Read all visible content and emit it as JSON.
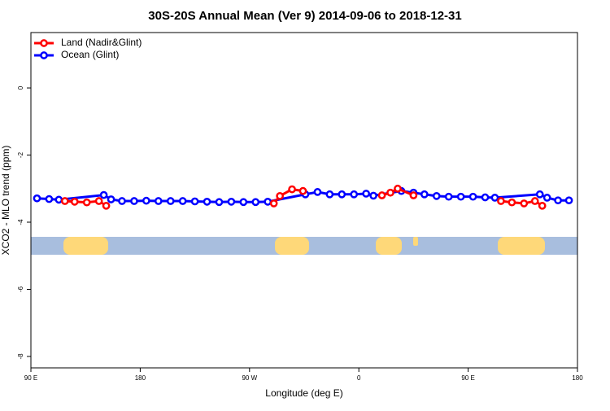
{
  "chart_data": {
    "type": "line",
    "title": "30S-20S Annual Mean (Ver 9)   2014-09-06 to 2018-12-31",
    "x_label": "Longitude (deg E)",
    "y_label": "XCO2 - MLO trend (ppm)",
    "xlim": [
      90,
      540
    ],
    "ylim": [
      -8.34,
      1.65
    ],
    "xticks": [
      {
        "value": 90,
        "label": "90 E"
      },
      180,
      {
        "value": 270,
        "label": "90 W"
      },
      {
        "value": 360,
        "label": "0"
      },
      {
        "value": 450,
        "label": "90 E"
      },
      {
        "value": 540,
        "label": "180"
      }
    ],
    "yticks": [
      0,
      -2,
      -4,
      -6,
      -8
    ],
    "legend": "top-left",
    "series": [
      {
        "name": "Ocean (Glint)",
        "color": "#0000ff",
        "x": [
          95,
          105,
          113,
          150,
          156,
          165,
          175,
          185,
          195,
          205,
          215,
          225,
          235,
          245,
          255,
          265,
          275,
          285,
          316,
          326,
          336,
          346,
          356,
          366,
          372,
          395,
          405,
          414,
          424,
          434,
          444,
          454,
          464,
          472,
          509,
          515,
          524,
          533
        ],
        "values": [
          -3.29,
          -3.31,
          -3.33,
          -3.19,
          -3.32,
          -3.37,
          -3.37,
          -3.36,
          -3.37,
          -3.37,
          -3.37,
          -3.38,
          -3.39,
          -3.4,
          -3.39,
          -3.4,
          -3.4,
          -3.39,
          -3.17,
          -3.1,
          -3.17,
          -3.17,
          -3.17,
          -3.15,
          -3.21,
          -3.07,
          -3.12,
          -3.17,
          -3.22,
          -3.24,
          -3.24,
          -3.24,
          -3.26,
          -3.27,
          -3.17,
          -3.27,
          -3.35,
          -3.35
        ]
      },
      {
        "name": "Land (Nadir&Glint)",
        "color": "#ff0000",
        "x": [
          118,
          126,
          136,
          146,
          152,
          220,
          290,
          295,
          305,
          314,
          350,
          379,
          386,
          392,
          405,
          440,
          477,
          486,
          496,
          505,
          511
        ],
        "values": [
          -3.37,
          -3.39,
          -3.41,
          -3.37,
          -3.51,
          null,
          -3.44,
          -3.22,
          -3.02,
          -3.07,
          null,
          -3.2,
          -3.12,
          -3.0,
          -3.2,
          null,
          -3.37,
          -3.41,
          -3.44,
          -3.37,
          -3.51
        ]
      }
    ]
  }
}
